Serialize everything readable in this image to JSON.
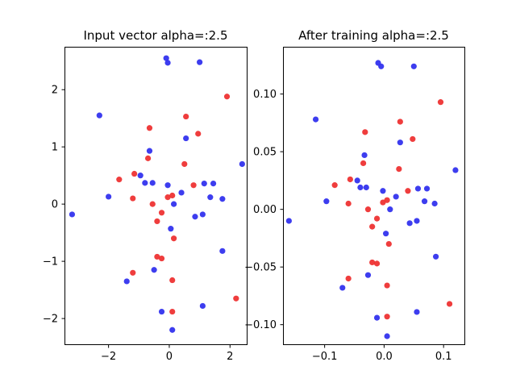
{
  "chart_data": [
    {
      "type": "scatter",
      "title": "Input vector alpha=:2.5",
      "xlabel": "",
      "ylabel": "",
      "xlim": [
        -3.45,
        2.55
      ],
      "ylim": [
        -2.45,
        2.75
      ],
      "xticks": [
        -2,
        0,
        2
      ],
      "xtick_labels": [
        "−2",
        "0",
        "2"
      ],
      "yticks": [
        -2,
        -1,
        0,
        1,
        2
      ],
      "ytick_labels": [
        "−2",
        "−1",
        "0",
        "1",
        "2"
      ],
      "grid": false,
      "series": [
        {
          "color": "#3333ee",
          "points": [
            [
              -0.1,
              2.55
            ],
            [
              -0.05,
              2.47
            ],
            [
              1.0,
              2.48
            ],
            [
              -2.3,
              1.55
            ],
            [
              0.55,
              1.15
            ],
            [
              -0.65,
              0.93
            ],
            [
              2.4,
              0.7
            ],
            [
              -0.95,
              0.5
            ],
            [
              -0.8,
              0.37
            ],
            [
              -0.55,
              0.37
            ],
            [
              -0.05,
              0.33
            ],
            [
              1.15,
              0.36
            ],
            [
              1.45,
              0.36
            ],
            [
              0.4,
              0.2
            ],
            [
              -2.0,
              0.13
            ],
            [
              1.35,
              0.12
            ],
            [
              1.75,
              0.09
            ],
            [
              0.15,
              0.0
            ],
            [
              -3.2,
              -0.18
            ],
            [
              1.1,
              -0.18
            ],
            [
              0.85,
              -0.22
            ],
            [
              0.05,
              -0.43
            ],
            [
              1.75,
              -0.82
            ],
            [
              -0.5,
              -1.15
            ],
            [
              -1.4,
              -1.35
            ],
            [
              1.1,
              -1.78
            ],
            [
              -0.25,
              -1.88
            ],
            [
              0.1,
              -2.2
            ]
          ]
        },
        {
          "color": "#ee3333",
          "points": [
            [
              1.9,
              1.88
            ],
            [
              0.55,
              1.53
            ],
            [
              -0.65,
              1.33
            ],
            [
              0.95,
              1.23
            ],
            [
              -0.7,
              0.8
            ],
            [
              0.5,
              0.7
            ],
            [
              -1.15,
              0.53
            ],
            [
              -1.65,
              0.43
            ],
            [
              0.8,
              0.33
            ],
            [
              0.1,
              0.15
            ],
            [
              -0.05,
              0.12
            ],
            [
              -1.2,
              0.1
            ],
            [
              -0.55,
              0.0
            ],
            [
              -0.25,
              -0.15
            ],
            [
              -0.4,
              -0.3
            ],
            [
              0.15,
              -0.6
            ],
            [
              -0.4,
              -0.92
            ],
            [
              -0.25,
              -0.95
            ],
            [
              -1.2,
              -1.2
            ],
            [
              0.1,
              -1.33
            ],
            [
              2.2,
              -1.65
            ],
            [
              0.1,
              -1.88
            ]
          ]
        }
      ]
    },
    {
      "type": "scatter",
      "title": "After training alpha=:2.5",
      "xlabel": "",
      "ylabel": "",
      "xlim": [
        -0.17,
        0.135
      ],
      "ylim": [
        -0.117,
        0.141
      ],
      "xticks": [
        -0.1,
        0.0,
        0.1
      ],
      "xtick_labels": [
        "−0.1",
        "0.0",
        "0.1"
      ],
      "yticks": [
        -0.1,
        -0.05,
        0.0,
        0.05,
        0.1
      ],
      "ytick_labels": [
        "−0.10",
        "−0.05",
        "0.00",
        "0.05",
        "0.10"
      ],
      "grid": false,
      "series": [
        {
          "color": "#3333ee",
          "points": [
            [
              -0.01,
              0.127
            ],
            [
              -0.005,
              0.124
            ],
            [
              0.05,
              0.124
            ],
            [
              -0.115,
              0.078
            ],
            [
              0.027,
              0.058
            ],
            [
              -0.033,
              0.047
            ],
            [
              0.12,
              0.034
            ],
            [
              -0.045,
              0.025
            ],
            [
              -0.04,
              0.019
            ],
            [
              -0.03,
              0.019
            ],
            [
              -0.002,
              0.016
            ],
            [
              0.057,
              0.018
            ],
            [
              0.072,
              0.018
            ],
            [
              0.02,
              0.011
            ],
            [
              -0.097,
              0.007
            ],
            [
              0.068,
              0.007
            ],
            [
              0.085,
              0.005
            ],
            [
              0.01,
              0.0
            ],
            [
              -0.16,
              -0.01
            ],
            [
              0.055,
              -0.01
            ],
            [
              0.043,
              -0.012
            ],
            [
              0.003,
              -0.021
            ],
            [
              0.087,
              -0.041
            ],
            [
              -0.027,
              -0.057
            ],
            [
              -0.07,
              -0.068
            ],
            [
              0.055,
              -0.089
            ],
            [
              -0.012,
              -0.094
            ],
            [
              0.005,
              -0.11
            ]
          ]
        },
        {
          "color": "#ee3333",
          "points": [
            [
              0.095,
              0.093
            ],
            [
              0.027,
              0.076
            ],
            [
              -0.032,
              0.067
            ],
            [
              0.048,
              0.061
            ],
            [
              -0.035,
              0.04
            ],
            [
              0.025,
              0.035
            ],
            [
              -0.057,
              0.026
            ],
            [
              -0.083,
              0.021
            ],
            [
              0.04,
              0.016
            ],
            [
              0.005,
              0.008
            ],
            [
              -0.002,
              0.006
            ],
            [
              -0.06,
              0.005
            ],
            [
              -0.027,
              0.0
            ],
            [
              -0.012,
              -0.008
            ],
            [
              -0.02,
              -0.015
            ],
            [
              0.008,
              -0.03
            ],
            [
              -0.02,
              -0.046
            ],
            [
              -0.012,
              -0.047
            ],
            [
              -0.06,
              -0.06
            ],
            [
              0.005,
              -0.066
            ],
            [
              0.11,
              -0.082
            ],
            [
              0.005,
              -0.093
            ]
          ]
        }
      ]
    }
  ]
}
